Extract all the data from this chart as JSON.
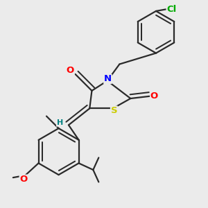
{
  "bg_color": "#ebebeb",
  "bond_color": "#2a2a2a",
  "bond_width": 1.6,
  "atom_colors": {
    "O": "#ff0000",
    "N": "#0000ff",
    "S": "#cccc00",
    "Cl": "#00aa00",
    "H": "#008080",
    "C": "#2a2a2a"
  },
  "font_size": 9.5,
  "fig_width": 3.0,
  "fig_height": 3.0,
  "dpi": 100
}
